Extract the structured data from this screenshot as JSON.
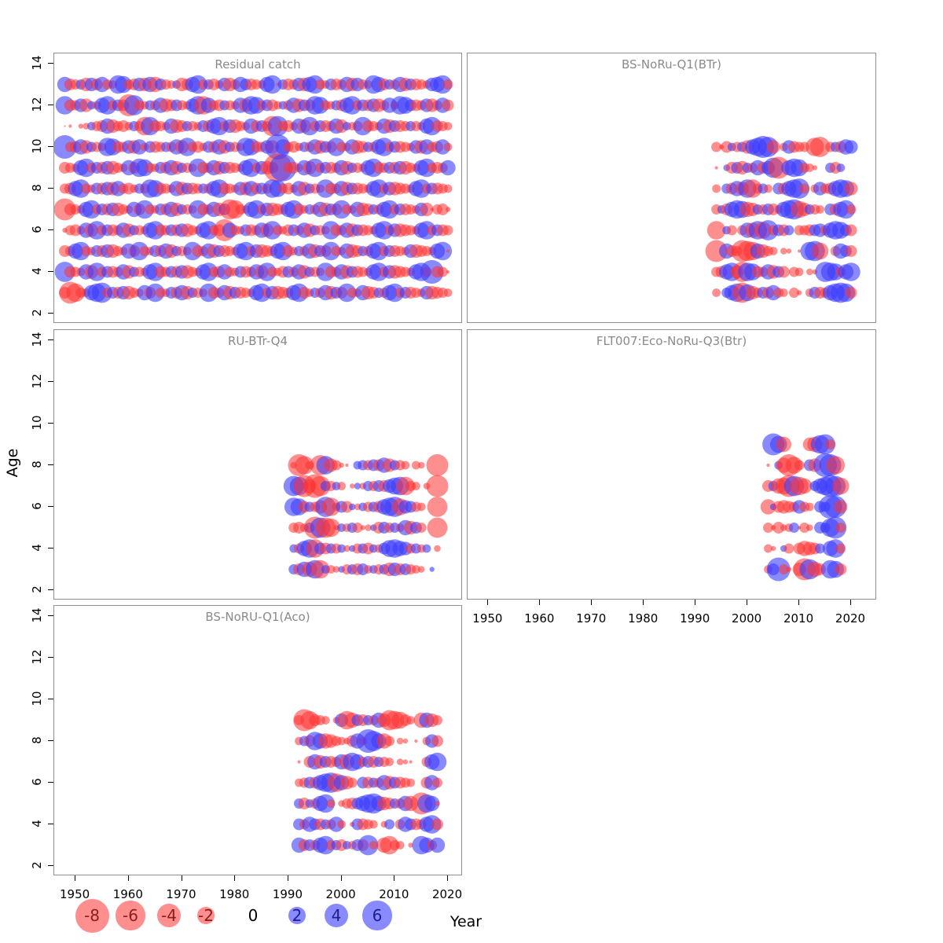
{
  "chart_data": {
    "type": "bubble",
    "description": "Lattice of age-year residual bubble plots; bubble area proportional to |residual|, red = negative, blue = positive",
    "xlabel": "Year",
    "ylabel": "Age",
    "x_ticks": [
      1950,
      1960,
      1970,
      1980,
      1990,
      2000,
      2010,
      2020
    ],
    "y_ticks": [
      2,
      4,
      6,
      8,
      10,
      12,
      14
    ],
    "x_range_left_column": [
      1946,
      2022.8
    ],
    "x_range_right_column": [
      1946,
      2025
    ],
    "y_range": [
      1.5,
      14.5
    ],
    "grid": "off",
    "legend": {
      "position": "bottom",
      "values": [
        -8,
        -6,
        -4,
        -2,
        0,
        2,
        4,
        6
      ]
    },
    "size_scale": {
      "reference_value": 8,
      "reference_radius_px": 21.5,
      "rule": "radius = 21.5 * sqrt(|value|/8)"
    },
    "colors": {
      "negative_fill": "#ff3232",
      "positive_fill": "#3c3cff",
      "negative_opacity": 0.55,
      "positive_opacity": 0.6,
      "negative_label": "#8b1d1d",
      "positive_label": "#1d1d8b",
      "zero_label": "#000000",
      "panel_title": "#8a8a8a",
      "panel_border": "#8f8f8f"
    },
    "value_encoding": "Per-row string, one char per year: '.' = no observation; 'a'-'t' = negative residual, 'A'-'T' = positive residual; letter index i (a/A=1 .. t/T=20) gives magnitude 8*(i/20)^2",
    "panel_grid": [
      [
        "Residual catch",
        "BS-NoRu-Q1(BTr)"
      ],
      [
        "RU-BTr-Q4",
        "FLT007:Eco-NoRu-Q3(Btr)"
      ],
      [
        "BS-NoRU-Q1(Aco)",
        null
      ]
    ],
    "panels": [
      {
        "title": "Residual catch",
        "col": 0,
        "row": 0,
        "start_year": 1948,
        "series": [
          {
            "age": 13,
            "values": "IgfFhHgIfeKJfgHhIiGfeEhgIKfFgeHhfIGgfeIKbFgfHhIKfeGgfIhHfeKIgFfIhGgfeHIKf"
          },
          {
            "age": 12,
            "values": "KgfHhEeIKfGgmLfeFfIhgGfeHKkIfgFfeIhKJfGgeEfIhGgKJfeFgIKfGgHhfIeKJGgfHhfIg"
          },
          {
            "age": 11,
            "values": "ab.cdEfgIhfgeFfkKgfeIhgFfeGgIKfHhfeIgGflLfgeIhKfGgfIhEefKgfeIhGgfFfeIKgfe"
          },
          {
            "age": 10,
            "values": "NfgIhFfeKJgfHhIeGgfFfIhKfgeGgIhFfeKJgfHhOIfgeFfIhGgKfeIhgFfIKfGgfeHhIfgIe"
          },
          {
            "age": 9,
            "values": "gfeIKfGgHhfeIgKJfeGgIhFfeKgfIhGgfeIKfHhgqPfgeIhKfGgfIhFfeIKgfGgHhfeIKfgfI"
          },
          {
            "age": 8,
            "values": "fgIKfeGgHhIfgeFfKJgfeIhGgfFfIKgfeHhIgGfKJfgeIhFfeKgfIhGgfeIKfHhgfeIKfGgfe"
          },
          {
            "age": 7,
            "values": "mgfeIKfGgHhfeIgKfeGgIhFfeKgfIhGlkfeIKfHhgfIKgeFfIhGgKfeIhgFfIKfGgfeHhbfgc"
          },
          {
            "age": 6,
            "values": "cfgeIhKfGgfIhFfeIKgfGgHhfeIKfgmIfeGgfIhKfegGfIhFfeKgfIhGgfeIKfHhgfeIKfGgf"
          },
          {
            "age": 5,
            "values": "gfIKfeGgHhfeIgKfeGgIhFfeKgfIhGgfeIKfHhgfIKgeFfIhGgKfeIhgFfIKfGgfeHhgfeIKb"
          },
          {
            "age": 4,
            "values": "LgfeIhKfGgfIhFfeIKgfGgHhfeIKfgIfeGgfIhKfegGfIhFfeKgfIhGgfeIKfHhgfeIKfNgfb"
          },
          {
            "age": 3,
            "values": "gmkfeIKLfGgHhfeIgKfeGgIhFfeKgfIhGgfeIKfHhgfIKgeFfIhGgKfeIhgFfIKfGgfeHhgfe"
          }
        ]
      },
      {
        "title": "BS-NoRu-Q1(BTr)",
        "col": 1,
        "row": 0,
        "start_year": 1994,
        "series": [
          {
            "age": 10,
            "values": "fcgEfFhIKMLh.eHgff.kl.fFgIH"
          },
          {
            "age": 9,
            "values": "b.DgGhFfIgHLm.IKJfec..FgE.."
          },
          {
            "age": 8,
            "values": "e.FgIhKkfFe.GgIKLf.eHfgIKJh"
          },
          {
            "age": 7,
            "values": "fEgIKJihFfGgeIKLjhFfe.GgIKf"
          },
          {
            "age": 6,
            "values": "k.Ef.fIiKjLfGgF.ffgGHfIKJGg"
          },
          {
            "age": 5,
            "values": "m.IgfmlkIhfe.dc.b.KLj..fIGg"
          },
          {
            "age": 4,
            "values": "fgIKhlKJgfIhGg.fe.dc.LKJfIK"
          },
          {
            "age": 3,
            "values": "e.FIKlJhfGgIfe.fc.eGgfIKLKg"
          }
        ]
      },
      {
        "title": "RU-BTr-Q4",
        "col": 0,
        "row": 1,
        "start_year": 1991,
        "series": [
          {
            "age": 8,
            "values": "dmke.lKhfcb.EFfGgIhFfe.ed..m"
          },
          {
            "age": 7,
            "values": "LKmhnlFfEe.cDdFfGgHJKkfe.d.m"
          },
          {
            "age": 6,
            "values": "KJgFfhLkeGgDdEfFgIKLjHGfe..l"
          },
          {
            "age": 5,
            "values": "fgeFmLlkcEeFfcdDgGfFeIhGf..l"
          },
          {
            "age": 4,
            "values": "EfIKkGgFfEdDfFgEeGJKIHfFeE.d"
          },
          {
            "age": 3,
            "values": "FgIiKkEedDfFgGeEfFhHgGfed.C."
          }
        ]
      },
      {
        "title": "FLT007:Eco-NoRu-Q3(Btr)",
        "col": 1,
        "row": 1,
        "start_year": 2004,
        "series": [
          {
            "age": 9,
            "values": ".MJi....hiKLf.."
          },
          {
            "age": 8,
            "values": "b.Eimjf.Gh.NMk."
          },
          {
            "age": 7,
            "values": "gFijmLki.FIKMLj"
          },
          {
            "age": 6,
            "values": "iDghgfHfe.GFNMh"
          },
          {
            "age": 5,
            "values": "fcgdeFbfd.GFKMf"
          },
          {
            "age": 4,
            "values": "ec.Df.gihgF.IKf"
          },
          {
            "age": 3,
            "values": "eGNfc.hmLig.KJg"
          }
        ]
      },
      {
        "title": "BS-NoRU-Q1(Aco)",
        "col": 0,
        "row": 2,
        "start_year": 1992,
        "series": [
          {
            "age": 9,
            "values": "fmkgfe.dHkiGgFfIhlkjge.iIhf"
          },
          {
            "age": 8,
            "values": "eFgKIihfedgIeNLIif.dc.b.eHg"
          },
          {
            "age": 7,
            "values": "b.gIhGgfIiKIfGgFfe.dcb..fIK"
          },
          {
            "age": 6,
            "values": "efGgIKLkIhf.GgFfIhGgfe..gIf"
          },
          {
            "age": 5,
            "values": "FgEfIKe.dfgGIKLIhgFfIi.mKIc"
          },
          {
            "age": 4,
            "values": "GfIGgFfIe.cGgfe.dF.fIGgfIKg"
          },
          {
            "age": 3,
            "values": "IgGfIKfFgEeGgLe.ikfe.c.KIfI"
          }
        ]
      }
    ]
  }
}
